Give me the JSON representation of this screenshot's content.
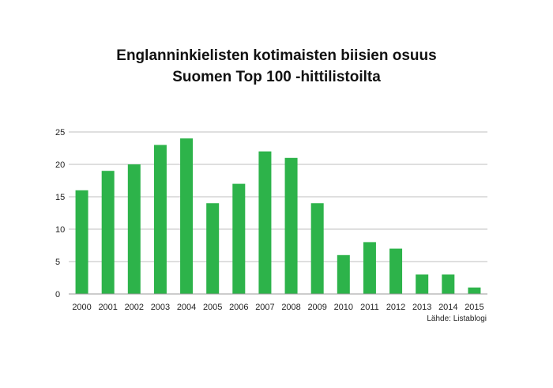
{
  "chart_data": {
    "type": "bar",
    "title_lines": [
      "Englanninkielisten kotimaisten biisien osuus",
      "Suomen Top 100 -hittilistoilta"
    ],
    "categories": [
      "2000",
      "2001",
      "2002",
      "2003",
      "2004",
      "2005",
      "2006",
      "2007",
      "2008",
      "2009",
      "2010",
      "2011",
      "2012",
      "2013",
      "2014",
      "2015"
    ],
    "values": [
      16,
      19,
      20,
      23,
      24,
      14,
      17,
      22,
      21,
      14,
      6,
      8,
      7,
      3,
      3,
      1
    ],
    "ylim": [
      0,
      25
    ],
    "yticks": [
      "0",
      "5",
      "10",
      "15",
      "20",
      "25"
    ],
    "grid": true,
    "bar_color": "#2db34a",
    "grid_color": "#bfbfbf",
    "source": "Lähde: Listablogi"
  }
}
